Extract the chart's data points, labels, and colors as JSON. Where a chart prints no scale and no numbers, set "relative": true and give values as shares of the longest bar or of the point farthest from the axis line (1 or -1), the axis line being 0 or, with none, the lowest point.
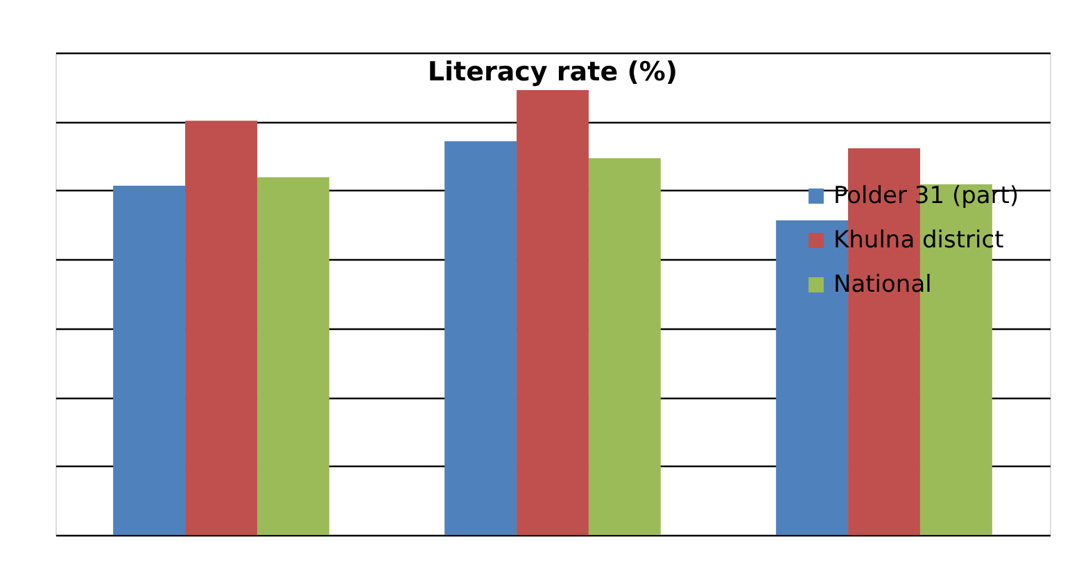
{
  "chart_data": {
    "type": "bar",
    "title": "Literacy rate (%)",
    "relative": true,
    "categories": [
      null,
      null,
      null
    ],
    "series": [
      {
        "name": "Polder 31 (part)",
        "color": "#4f81bd",
        "values": [
          0.785,
          0.885,
          0.707
        ]
      },
      {
        "name": "Khulna district",
        "color": "#c0504d",
        "values": [
          0.931,
          1,
          0.869
        ]
      },
      {
        "name": "National",
        "color": "#9bbb59",
        "values": [
          0.804,
          0.847,
          0.788
        ]
      }
    ],
    "grid": "y",
    "legend": "right"
  }
}
